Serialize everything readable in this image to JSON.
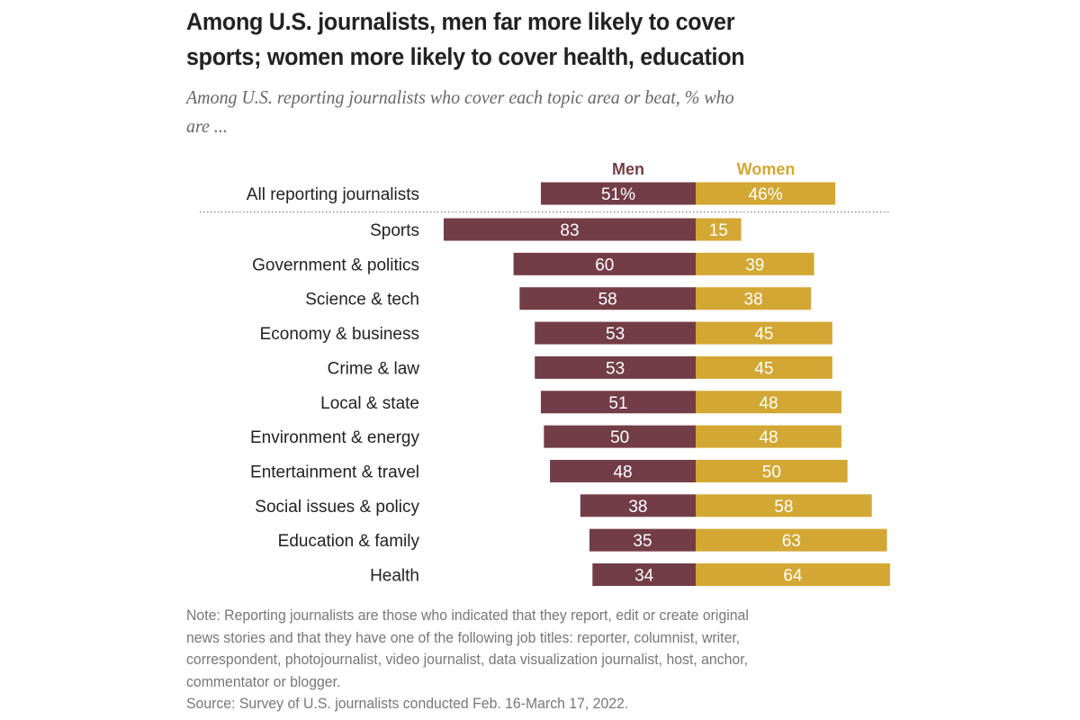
{
  "title_lines": [
    "Among U.S. journalists, men far more likely to cover",
    "sports; women more likely to cover health, education"
  ],
  "subtitle_lines": [
    "Among U.S. reporting journalists who cover each topic area or beat, % who",
    "are ..."
  ],
  "colors": {
    "men": "#733d47",
    "women": "#d3a733",
    "label_text": "#222222",
    "bar_text": "#ffffff",
    "divider": "#888888"
  },
  "chart_data": {
    "type": "bar",
    "orientation": "horizontal-diverging",
    "title": "Among U.S. journalists, men far more likely to cover sports; women more likely to cover health, education",
    "subtitle": "Among U.S. reporting journalists who cover each topic area or beat, % who are ...",
    "legend": [
      "Men",
      "Women"
    ],
    "legend_placement": "top-center",
    "total": {
      "category": "All reporting journalists",
      "men": 51,
      "women": 46,
      "men_label": "51%",
      "women_label": "46%"
    },
    "categories": [
      "Sports",
      "Government & politics",
      "Science & tech",
      "Economy & business",
      "Crime & law",
      "Local & state",
      "Environment & energy",
      "Entertainment & travel",
      "Social issues & policy",
      "Education & family",
      "Health"
    ],
    "series": [
      {
        "name": "Men",
        "values": [
          83,
          60,
          58,
          53,
          53,
          51,
          50,
          48,
          38,
          35,
          34
        ]
      },
      {
        "name": "Women",
        "values": [
          15,
          39,
          38,
          45,
          45,
          48,
          48,
          50,
          58,
          63,
          64
        ]
      }
    ],
    "units": "%",
    "xlim": [
      -83,
      64
    ],
    "grid": false
  },
  "note_lines": [
    "Note: Reporting journalists are those who indicated that they report, edit or create original",
    "news stories and that they have one of the following job titles: reporter, columnist, writer,",
    "correspondent, photojournalist, video journalist, data visualization journalist, host, anchor,",
    "commentator or blogger."
  ],
  "source": "Source: Survey of U.S. journalists conducted Feb. 16-March 17, 2022."
}
